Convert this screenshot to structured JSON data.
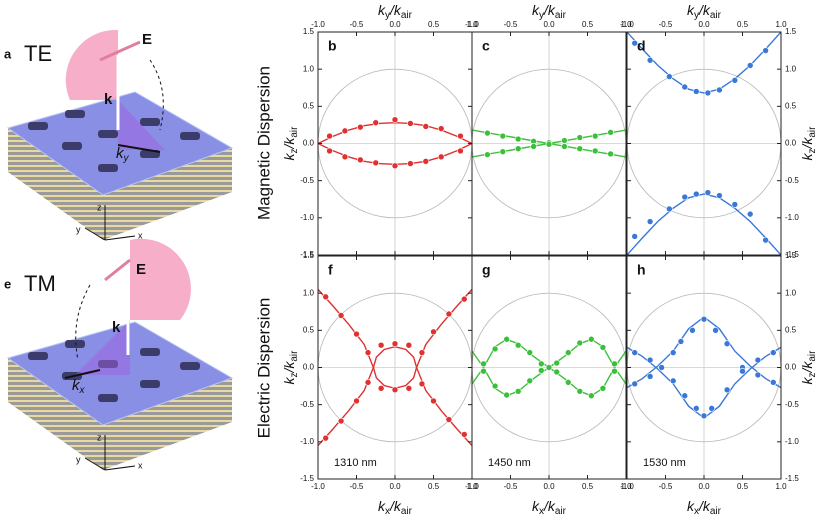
{
  "figure": {
    "row_labels": [
      "Magnetic Dispersion",
      "Electric Dispersion"
    ],
    "illustrations": [
      {
        "label": "a",
        "mode": "TE",
        "field": "E",
        "wave": "k",
        "k_in": [
          "k",
          "y"
        ],
        "axes": [
          "z",
          "y",
          "x"
        ]
      },
      {
        "label": "e",
        "mode": "TM",
        "field": "E",
        "wave": "k",
        "k_in": [
          "k",
          "x"
        ],
        "axes": [
          "z",
          "y",
          "x"
        ]
      }
    ]
  },
  "chart_data": [
    {
      "type": "scatter",
      "label": "b",
      "color": "#e03030",
      "xlim": [
        -1,
        1
      ],
      "ylim": [
        -1.5,
        1.5
      ],
      "circle_radius": 1,
      "xtick_side": "top",
      "ytick_side": "left",
      "xlabel": [
        "k",
        "y",
        "/k",
        "air"
      ],
      "ylabel": [
        "k",
        "z",
        "/k",
        "air"
      ],
      "xticks": [
        {
          "value": -1,
          "label": "-1.0"
        },
        -0.5,
        {
          "value": 0,
          "label": "0.0"
        },
        0.5,
        {
          "value": 1,
          "label": "1.0"
        }
      ],
      "yticks": [
        -1.5,
        {
          "value": -1,
          "label": "-1.0"
        },
        -0.5,
        {
          "value": 0,
          "label": "0.0"
        },
        0.5,
        {
          "value": 1,
          "label": "1.0"
        },
        1.5
      ],
      "curves": [
        {
          "x": [
            -1,
            -0.8,
            -0.6,
            -0.4,
            -0.2,
            0,
            0.2,
            0.4,
            0.6,
            0.8,
            1
          ],
          "y": [
            0,
            0.1,
            0.18,
            0.24,
            0.27,
            0.28,
            0.27,
            0.24,
            0.18,
            0.1,
            0
          ]
        },
        {
          "x": [
            -1,
            -0.8,
            -0.6,
            -0.4,
            -0.2,
            0,
            0.2,
            0.4,
            0.6,
            0.8,
            1
          ],
          "y": [
            0,
            -0.1,
            -0.18,
            -0.24,
            -0.27,
            -0.28,
            -0.27,
            -0.24,
            -0.18,
            -0.1,
            0
          ]
        }
      ],
      "points": {
        "x": [
          -0.85,
          -0.65,
          -0.45,
          -0.25,
          0,
          0.2,
          0.4,
          0.6,
          0.85,
          -0.85,
          -0.65,
          -0.45,
          -0.25,
          0,
          0.2,
          0.4,
          0.6,
          0.85
        ],
        "y": [
          0.1,
          0.17,
          0.22,
          0.28,
          0.32,
          0.27,
          0.23,
          0.2,
          0.1,
          -0.1,
          -0.18,
          -0.22,
          -0.26,
          -0.3,
          -0.27,
          -0.24,
          -0.18,
          -0.1
        ]
      }
    },
    {
      "type": "scatter",
      "label": "c",
      "color": "#3cc03c",
      "xlim": [
        -1,
        1
      ],
      "ylim": [
        -1.5,
        1.5
      ],
      "circle_radius": 1,
      "xtick_side": "top",
      "xlabel": [
        "k",
        "y",
        "/k",
        "air"
      ],
      "xticks": [
        {
          "value": -1,
          "label": "-1.0"
        },
        -0.5,
        {
          "value": 0,
          "label": "0.0"
        },
        0.5,
        {
          "value": 1,
          "label": "1.0"
        }
      ],
      "curves": [
        {
          "x": [
            -1,
            1
          ],
          "y": [
            0.18,
            -0.18
          ]
        },
        {
          "x": [
            -1,
            1
          ],
          "y": [
            -0.18,
            0.18
          ]
        }
      ],
      "points": {
        "x": [
          -0.8,
          -0.6,
          -0.4,
          -0.2,
          0,
          0.2,
          0.4,
          0.6,
          0.8,
          -0.8,
          -0.6,
          -0.4,
          -0.2,
          0,
          0.2,
          0.4,
          0.6,
          0.8
        ],
        "y": [
          0.14,
          0.1,
          0.06,
          0.03,
          0.01,
          -0.04,
          -0.07,
          -0.1,
          -0.14,
          -0.15,
          -0.11,
          -0.07,
          -0.04,
          -0.01,
          0.04,
          0.08,
          0.1,
          0.15
        ]
      }
    },
    {
      "type": "scatter",
      "label": "d",
      "color": "#3a78d8",
      "xlim": [
        -1,
        1
      ],
      "ylim": [
        -1.5,
        1.5
      ],
      "circle_radius": 1,
      "xtick_side": "top",
      "ytick_side": "right",
      "xlabel": [
        "k",
        "y",
        "/k",
        "air"
      ],
      "ylabel": [
        "k",
        "z",
        "/k",
        "air"
      ],
      "xticks": [
        {
          "value": -1,
          "label": "-1.0"
        },
        -0.5,
        {
          "value": 0,
          "label": "0.0"
        },
        0.5,
        {
          "value": 1,
          "label": "1.0"
        }
      ],
      "yticks": [
        -1.5,
        {
          "value": -1,
          "label": "-1.0"
        },
        -0.5,
        {
          "value": 0,
          "label": "0.0"
        },
        0.5,
        {
          "value": 1,
          "label": "1.0"
        },
        1.5
      ],
      "curves": [
        {
          "x": [
            -1,
            -0.8,
            -0.6,
            -0.4,
            -0.2,
            0,
            0.2,
            0.4,
            0.6,
            0.8,
            1
          ],
          "y": [
            1.5,
            1.27,
            1.05,
            0.87,
            0.73,
            0.68,
            0.73,
            0.87,
            1.05,
            1.27,
            1.5
          ]
        },
        {
          "x": [
            -1,
            -0.8,
            -0.6,
            -0.4,
            -0.2,
            0,
            0.2,
            0.4,
            0.6,
            0.8,
            1
          ],
          "y": [
            -1.5,
            -1.27,
            -1.05,
            -0.87,
            -0.73,
            -0.68,
            -0.73,
            -0.87,
            -1.05,
            -1.27,
            -1.5
          ]
        }
      ],
      "points": {
        "x": [
          -0.9,
          -0.7,
          -0.45,
          -0.25,
          -0.1,
          0.05,
          0.2,
          0.4,
          0.6,
          0.8,
          -0.9,
          -0.7,
          -0.45,
          -0.25,
          -0.1,
          0.05,
          0.2,
          0.4,
          0.6,
          0.8
        ],
        "y": [
          1.35,
          1.12,
          0.9,
          0.76,
          0.7,
          0.68,
          0.72,
          0.85,
          1.05,
          1.25,
          -1.25,
          -1.05,
          -0.88,
          -0.72,
          -0.68,
          -0.66,
          -0.7,
          -0.82,
          -0.95,
          -1.3
        ]
      }
    },
    {
      "type": "scatter",
      "label": "f",
      "color": "#e03030",
      "xlim": [
        -1,
        1
      ],
      "ylim": [
        -1.5,
        1.5
      ],
      "circle_radius": 1,
      "wavelength": "1310 nm",
      "xtick_side": "bottom",
      "ytick_side": "left",
      "xlabel": [
        "k",
        "x",
        "/k",
        "air"
      ],
      "ylabel": [
        "k",
        "z",
        "/k",
        "air"
      ],
      "xticks": [
        {
          "value": -1,
          "label": "-1.0"
        },
        -0.5,
        {
          "value": 0,
          "label": "0.0"
        },
        0.5,
        {
          "value": 1,
          "label": "1.0"
        }
      ],
      "yticks": [
        -1.5,
        {
          "value": -1,
          "label": "-1.0"
        },
        -0.5,
        {
          "value": 0,
          "label": "0.0"
        },
        0.5,
        {
          "value": 1,
          "label": "1.0"
        },
        1.5
      ],
      "curves": [
        {
          "x": [
            -1,
            -0.8,
            -0.6,
            -0.4,
            -0.28,
            -0.4,
            -0.6,
            -0.8,
            -1
          ],
          "y": [
            1.05,
            0.82,
            0.58,
            0.31,
            0,
            -0.31,
            -0.58,
            -0.82,
            -1.05
          ]
        },
        {
          "x": [
            1,
            0.8,
            0.6,
            0.4,
            0.28,
            0.4,
            0.6,
            0.8,
            1
          ],
          "y": [
            1.05,
            0.82,
            0.58,
            0.31,
            0,
            -0.31,
            -0.58,
            -0.82,
            -1.05
          ]
        },
        {
          "x": [
            0.28,
            0.242,
            0.14,
            0,
            -0.14,
            -0.242,
            -0.28,
            -0.242,
            -0.14,
            0,
            0.14,
            0.242,
            0.28
          ],
          "y": [
            0,
            0.14,
            0.242,
            0.28,
            0.242,
            0.14,
            0,
            -0.14,
            -0.242,
            -0.28,
            -0.242,
            -0.14,
            0
          ]
        }
      ],
      "points": {
        "x": [
          -0.9,
          -0.7,
          -0.5,
          -0.35,
          -0.9,
          -0.7,
          -0.5,
          -0.35,
          0.9,
          0.7,
          0.5,
          0.35,
          0.9,
          0.7,
          0.5,
          0.35,
          -0.18,
          0,
          0.18,
          -0.18,
          0,
          0.18
        ],
        "y": [
          0.95,
          0.7,
          0.45,
          0.2,
          -0.95,
          -0.72,
          -0.45,
          -0.2,
          0.92,
          0.72,
          0.48,
          0.2,
          -0.9,
          -0.7,
          -0.45,
          -0.22,
          0.3,
          0.32,
          0.3,
          -0.28,
          -0.3,
          -0.28
        ]
      }
    },
    {
      "type": "scatter",
      "label": "g",
      "color": "#3cc03c",
      "xlim": [
        -1,
        1
      ],
      "ylim": [
        -1.5,
        1.5
      ],
      "circle_radius": 1,
      "wavelength": "1450 nm",
      "xtick_side": "bottom",
      "xlabel": [
        "k",
        "x",
        "/k",
        "air"
      ],
      "xticks": [
        {
          "value": -1,
          "label": "-1.0"
        },
        -0.5,
        {
          "value": 0,
          "label": "0.0"
        },
        0.5,
        {
          "value": 1,
          "label": "1.0"
        }
      ],
      "curves": [
        {
          "x": [
            -1,
            -0.85,
            -0.7,
            -0.55,
            -0.4,
            -0.2,
            0,
            0.2,
            0.4,
            0.55,
            0.7,
            0.85,
            1
          ],
          "y": [
            -0.22,
            0,
            0.28,
            0.38,
            0.32,
            0.15,
            0,
            -0.15,
            -0.32,
            -0.38,
            -0.28,
            0,
            0.22
          ]
        },
        {
          "x": [
            -1,
            -0.85,
            -0.7,
            -0.55,
            -0.4,
            -0.2,
            0,
            0.2,
            0.4,
            0.55,
            0.7,
            0.85,
            1
          ],
          "y": [
            0.22,
            0,
            -0.28,
            -0.38,
            -0.32,
            -0.15,
            0,
            0.15,
            0.32,
            0.38,
            0.28,
            0,
            -0.22
          ]
        }
      ],
      "points": {
        "x": [
          -0.85,
          -0.7,
          -0.55,
          -0.4,
          -0.25,
          -0.1,
          0,
          0.1,
          0.25,
          0.4,
          0.55,
          0.7,
          0.85,
          -0.85,
          -0.7,
          -0.55,
          -0.4,
          -0.25,
          -0.1,
          0.1,
          0.25,
          0.4,
          0.55,
          0.7,
          0.85
        ],
        "y": [
          0.05,
          0.25,
          0.38,
          0.3,
          0.2,
          0.05,
          0,
          -0.06,
          -0.2,
          -0.32,
          -0.38,
          -0.28,
          -0.05,
          -0.05,
          -0.25,
          -0.37,
          -0.32,
          -0.18,
          -0.04,
          0.06,
          0.2,
          0.33,
          0.38,
          0.27,
          0.05
        ]
      }
    },
    {
      "type": "scatter",
      "label": "h",
      "color": "#3a78d8",
      "xlim": [
        -1,
        1
      ],
      "ylim": [
        -1.5,
        1.5
      ],
      "circle_radius": 1,
      "wavelength": "1530 nm",
      "xtick_side": "bottom",
      "ytick_side": "right",
      "xlabel": [
        "k",
        "x",
        "/k",
        "air"
      ],
      "ylabel": [
        "k",
        "z",
        "/k",
        "air"
      ],
      "xticks": [
        {
          "value": -1,
          "label": "-1.0"
        },
        -0.5,
        {
          "value": 0,
          "label": "0.0"
        },
        0.5,
        {
          "value": 1,
          "label": "1.0"
        }
      ],
      "yticks": [
        -1.5,
        {
          "value": -1,
          "label": "-1.0"
        },
        -0.5,
        {
          "value": 0,
          "label": "0.0"
        },
        0.5,
        {
          "value": 1,
          "label": "1.0"
        },
        1.5
      ],
      "curves": [
        {
          "x": [
            -1,
            -0.8,
            -0.6,
            -0.4,
            -0.2,
            0,
            0.2,
            0.4,
            0.6,
            0.8,
            1
          ],
          "y": [
            -0.27,
            -0.15,
            0.02,
            0.22,
            0.52,
            0.68,
            0.52,
            0.22,
            0.02,
            -0.15,
            -0.27
          ]
        },
        {
          "x": [
            -1,
            -0.8,
            -0.6,
            -0.4,
            -0.2,
            0,
            0.2,
            0.4,
            0.6,
            0.8,
            1
          ],
          "y": [
            0.27,
            0.15,
            -0.02,
            -0.22,
            -0.52,
            -0.68,
            -0.52,
            -0.22,
            -0.02,
            0.15,
            0.27
          ]
        }
      ],
      "points": {
        "x": [
          -0.9,
          -0.7,
          -0.55,
          -0.4,
          -0.3,
          -0.15,
          0,
          0.15,
          0.3,
          0.5,
          0.7,
          0.9,
          -0.9,
          -0.7,
          -0.4,
          -0.25,
          -0.1,
          0,
          0.1,
          0.3,
          0.5,
          0.7,
          0.9
        ],
        "y": [
          0.2,
          0.1,
          0,
          0.2,
          0.35,
          0.5,
          0.65,
          0.5,
          0.32,
          0,
          -0.1,
          -0.2,
          -0.22,
          -0.12,
          -0.18,
          -0.38,
          -0.55,
          -0.65,
          -0.55,
          -0.3,
          -0.05,
          0.1,
          0.2
        ]
      }
    }
  ]
}
